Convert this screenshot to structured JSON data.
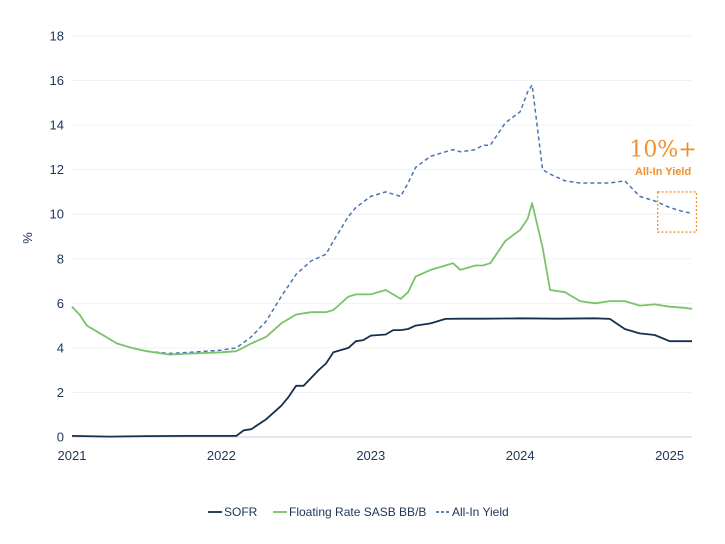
{
  "chart_data": {
    "type": "line",
    "title": "",
    "xlabel": "",
    "ylabel": "%",
    "xlim": [
      2021.0,
      2025.15
    ],
    "ylim": [
      0,
      18
    ],
    "x_ticks": [
      2021,
      2022,
      2023,
      2024,
      2025
    ],
    "x_tick_labels": [
      "2021",
      "2022",
      "2023",
      "2024",
      "2025"
    ],
    "y_ticks": [
      0,
      2,
      4,
      6,
      8,
      10,
      12,
      14,
      16,
      18
    ],
    "y_tick_labels": [
      "0",
      "2",
      "4",
      "6",
      "8",
      "10",
      "12",
      "14",
      "16",
      "18"
    ],
    "grid": true,
    "legend_position": "bottom",
    "series": [
      {
        "name": "SOFR",
        "color": "#14304f",
        "style": "solid",
        "x": [
          2021.0,
          2021.25,
          2021.5,
          2021.75,
          2022.0,
          2022.1,
          2022.15,
          2022.2,
          2022.3,
          2022.4,
          2022.45,
          2022.5,
          2022.55,
          2022.65,
          2022.7,
          2022.75,
          2022.85,
          2022.9,
          2022.95,
          2023.0,
          2023.1,
          2023.15,
          2023.2,
          2023.25,
          2023.3,
          2023.4,
          2023.5,
          2023.6,
          2023.75,
          2023.9,
          2024.0,
          2024.25,
          2024.5,
          2024.6,
          2024.7,
          2024.8,
          2024.9,
          2025.0,
          2025.15
        ],
        "y": [
          0.05,
          0.02,
          0.04,
          0.05,
          0.05,
          0.05,
          0.3,
          0.35,
          0.8,
          1.4,
          1.8,
          2.3,
          2.3,
          3.0,
          3.3,
          3.8,
          4.0,
          4.3,
          4.35,
          4.55,
          4.6,
          4.8,
          4.8,
          4.85,
          5.0,
          5.1,
          5.3,
          5.31,
          5.31,
          5.32,
          5.33,
          5.31,
          5.33,
          5.3,
          4.85,
          4.65,
          4.58,
          4.3,
          4.3
        ]
      },
      {
        "name": "Floating Rate SASB BB/B",
        "color": "#7ac36a",
        "style": "solid",
        "x": [
          2021.0,
          2021.05,
          2021.1,
          2021.2,
          2021.3,
          2021.4,
          2021.5,
          2021.65,
          2021.8,
          2022.0,
          2022.1,
          2022.2,
          2022.3,
          2022.4,
          2022.5,
          2022.6,
          2022.7,
          2022.75,
          2022.85,
          2022.9,
          2023.0,
          2023.1,
          2023.2,
          2023.25,
          2023.3,
          2023.4,
          2023.5,
          2023.55,
          2023.6,
          2023.7,
          2023.75,
          2023.8,
          2023.9,
          2024.0,
          2024.05,
          2024.08,
          2024.15,
          2024.2,
          2024.3,
          2024.4,
          2024.5,
          2024.6,
          2024.7,
          2024.8,
          2024.9,
          2025.0,
          2025.1,
          2025.15
        ],
        "y": [
          5.85,
          5.5,
          5.0,
          4.6,
          4.2,
          4.0,
          3.85,
          3.7,
          3.75,
          3.8,
          3.85,
          4.2,
          4.5,
          5.1,
          5.5,
          5.6,
          5.6,
          5.7,
          6.3,
          6.4,
          6.4,
          6.6,
          6.2,
          6.5,
          7.2,
          7.5,
          7.7,
          7.8,
          7.5,
          7.7,
          7.7,
          7.8,
          8.8,
          9.3,
          9.8,
          10.5,
          8.5,
          6.6,
          6.5,
          6.1,
          6.0,
          6.1,
          6.1,
          5.9,
          5.95,
          5.85,
          5.8,
          5.75
        ]
      },
      {
        "name": "All-In Yield",
        "color": "#4a74b4",
        "style": "dashed",
        "x": [
          2021.0,
          2021.05,
          2021.1,
          2021.2,
          2021.3,
          2021.4,
          2021.5,
          2021.65,
          2021.8,
          2022.0,
          2022.1,
          2022.2,
          2022.3,
          2022.4,
          2022.5,
          2022.6,
          2022.7,
          2022.75,
          2022.85,
          2022.9,
          2023.0,
          2023.1,
          2023.2,
          2023.25,
          2023.3,
          2023.4,
          2023.5,
          2023.55,
          2023.6,
          2023.7,
          2023.75,
          2023.8,
          2023.9,
          2024.0,
          2024.05,
          2024.08,
          2024.15,
          2024.2,
          2024.3,
          2024.4,
          2024.5,
          2024.6,
          2024.7,
          2024.8,
          2024.9,
          2025.0,
          2025.1,
          2025.15
        ],
        "y": [
          5.85,
          5.5,
          5.0,
          4.6,
          4.2,
          4.0,
          3.85,
          3.75,
          3.8,
          3.9,
          4.0,
          4.5,
          5.2,
          6.3,
          7.3,
          7.9,
          8.2,
          8.8,
          9.9,
          10.3,
          10.8,
          11.0,
          10.8,
          11.4,
          12.1,
          12.6,
          12.8,
          12.9,
          12.8,
          12.9,
          13.1,
          13.1,
          14.1,
          14.6,
          15.5,
          15.8,
          12.0,
          11.8,
          11.5,
          11.4,
          11.4,
          11.4,
          11.5,
          10.8,
          10.6,
          10.3,
          10.1,
          10.05
        ]
      }
    ],
    "annotation": {
      "big_text": "10%+",
      "small_text": "All-In Yield",
      "color": "#f0902a",
      "box_x": [
        2024.92,
        2025.18
      ],
      "box_y": [
        9.2,
        11.0
      ]
    }
  }
}
